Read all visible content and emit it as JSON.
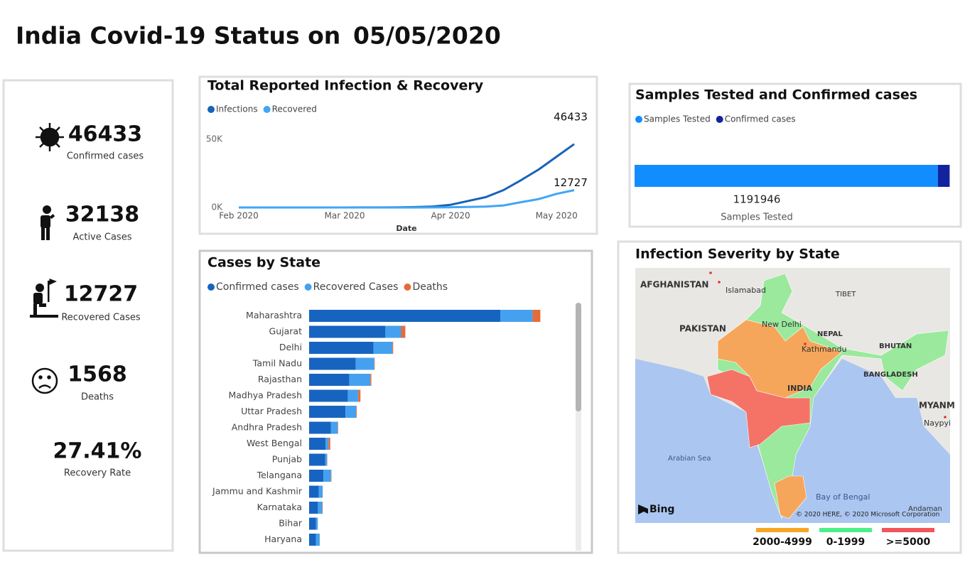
{
  "header": {
    "title": "India Covid-19 Status on",
    "date": "05/05/2020"
  },
  "kpis": [
    {
      "value": "46433",
      "label": "Confirmed cases"
    },
    {
      "value": "32138",
      "label": "Active Cases"
    },
    {
      "value": "12727",
      "label": "Recovered Cases"
    },
    {
      "value": "1568",
      "label": "Deaths"
    },
    {
      "value": "27.41%",
      "label": "Recovery Rate"
    }
  ],
  "chart_data": [
    {
      "type": "line",
      "title": "Total Reported Infection & Recovery",
      "categories": [
        "Feb 2020",
        null,
        null,
        null,
        null,
        null,
        "Mar 2020",
        null,
        null,
        null,
        null,
        null,
        "Apr 2020",
        null,
        null,
        null,
        null,
        null,
        "May 2020",
        null
      ],
      "series": [
        {
          "name": "Infections",
          "color": "#1763b8",
          "values": [
            1,
            3,
            3,
            3,
            3,
            3,
            3,
            31,
            62,
            114,
            330,
            727,
            1998,
            4778,
            7600,
            12759,
            20080,
            27892,
            37257,
            46433
          ]
        },
        {
          "name": "Recovered",
          "color": "#42a5f5",
          "values": [
            0,
            0,
            0,
            3,
            3,
            3,
            3,
            3,
            4,
            13,
            23,
            45,
            144,
            400,
            700,
            1500,
            3900,
            6200,
            10000,
            12727
          ]
        }
      ],
      "ylim": [
        0,
        55000
      ],
      "yticks": [
        {
          "value": 0,
          "label": "0K"
        },
        {
          "value": 50000,
          "label": "50K"
        }
      ],
      "x_label": "Date",
      "grid": false,
      "legend": "top-left"
    },
    {
      "type": "bar",
      "title": "Samples Tested and Confirmed cases",
      "orientation": "horizontal",
      "stacked": true,
      "categories": [
        "Samples Tested"
      ],
      "series": [
        {
          "name": "Samples Tested",
          "color": "#118dff",
          "values": [
            1191946
          ]
        },
        {
          "name": "Confirmed cases",
          "color": "#12239e",
          "values": [
            46433
          ]
        }
      ],
      "xlim": [
        0,
        1240000
      ],
      "legend": "top-left"
    },
    {
      "type": "bar",
      "title": "Cases by State",
      "orientation": "horizontal",
      "stacked": true,
      "categories": [
        "Maharashtra",
        "Gujarat",
        "Delhi",
        "Tamil Nadu",
        "Rajasthan",
        "Madhya Pradesh",
        "Uttar Pradesh",
        "Andhra Pradesh",
        "West Bengal",
        "Punjab",
        "Telangana",
        "Jammu and Kashmir",
        "Karnataka",
        "Bihar",
        "Haryana"
      ],
      "series": [
        {
          "name": "Confirmed cases",
          "color": "#1664c0",
          "values": [
            14541,
            5804,
            4898,
            3550,
            3061,
            2942,
            2766,
            1650,
            1259,
            1232,
            1085,
            741,
            671,
            517,
            517
          ]
        },
        {
          "name": "Recovered Cases",
          "color": "#45a1ef",
          "values": [
            2465,
            1195,
            1431,
            1409,
            1596,
            798,
            802,
            524,
            218,
            128,
            585,
            287,
            331,
            143,
            290
          ]
        },
        {
          "name": "Deaths",
          "color": "#e66c37",
          "values": [
            583,
            319,
            64,
            31,
            77,
            165,
            50,
            36,
            133,
            25,
            29,
            8,
            29,
            4,
            6
          ]
        }
      ],
      "xlim": [
        0,
        18000
      ],
      "legend": "top-left"
    }
  ],
  "map": {
    "title": "Infection Severity by State",
    "labels": [
      "AFGHANISTAN",
      "Islamabad",
      "TIBET",
      "PAKISTAN",
      "New Delhi",
      "NEPAL",
      "Kathmandu",
      "BHUTAN",
      "INDIA",
      "BANGLADESH",
      "MYANM",
      "Naypyi",
      "Arabian Sea",
      "Bay of Bengal",
      "Andaman"
    ],
    "logo": "Bing",
    "attribution": "© 2020 HERE, © 2020 Microsoft Corporation",
    "legend": [
      {
        "label": "2000-4999",
        "color": "#f5a623"
      },
      {
        "label": "0-1999",
        "color": "#4cf08a"
      },
      {
        "label": ">=5000",
        "color": "#f2545b"
      }
    ]
  }
}
